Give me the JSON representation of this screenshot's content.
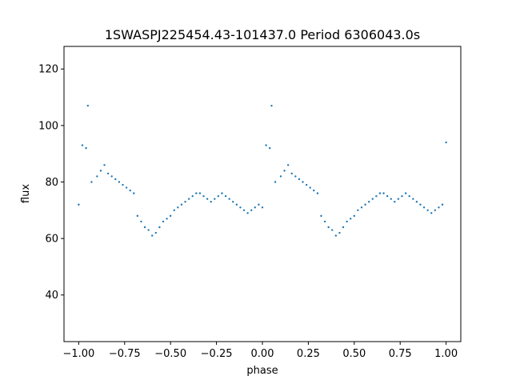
{
  "chart_data": {
    "type": "scatter",
    "title": "1SWASPJ225454.43-101437.0 Period 6306043.0s",
    "xlabel": "phase",
    "ylabel": "flux",
    "xlim": [
      -1.08,
      1.08
    ],
    "ylim": [
      23.5,
      128
    ],
    "xticks": [
      -1.0,
      -0.75,
      -0.5,
      -0.25,
      0.0,
      0.25,
      0.5,
      0.75,
      1.0
    ],
    "xtick_labels": [
      "−1.00",
      "−0.75",
      "−0.50",
      "−0.25",
      "0.00",
      "0.25",
      "0.50",
      "0.75",
      "1.00"
    ],
    "yticks": [
      40,
      60,
      80,
      100,
      120
    ],
    "ytick_labels": [
      "40",
      "60",
      "80",
      "100",
      "120"
    ],
    "grid": false,
    "marker_color": "#1f77b4",
    "series": [
      {
        "x": [
          -1.0,
          -0.98,
          -0.96,
          -0.95,
          -0.93,
          -0.9,
          -0.88,
          -0.86,
          -0.84,
          -0.82,
          -0.8,
          -0.78,
          -0.76,
          -0.74,
          -0.72,
          -0.7,
          -0.68,
          -0.66,
          -0.64,
          -0.62,
          -0.6,
          -0.58,
          -0.56,
          -0.54,
          -0.52,
          -0.5,
          -0.48,
          -0.46,
          -0.44,
          -0.42,
          -0.4,
          -0.38,
          -0.36,
          -0.34,
          -0.32,
          -0.3,
          -0.28,
          -0.26,
          -0.24,
          -0.22,
          -0.2,
          -0.18,
          -0.16,
          -0.14,
          -0.12,
          -0.1,
          -0.08,
          -0.06,
          -0.04,
          -0.02,
          0.0,
          0.02,
          0.04,
          0.05,
          0.07,
          0.1,
          0.12,
          0.14,
          0.16,
          0.18,
          0.2,
          0.22,
          0.24,
          0.26,
          0.28,
          0.3,
          0.32,
          0.34,
          0.36,
          0.38,
          0.4,
          0.42,
          0.44,
          0.46,
          0.48,
          0.5,
          0.52,
          0.54,
          0.56,
          0.58,
          0.6,
          0.62,
          0.64,
          0.66,
          0.68,
          0.7,
          0.72,
          0.74,
          0.76,
          0.78,
          0.8,
          0.82,
          0.84,
          0.86,
          0.88,
          0.9,
          0.92,
          0.94,
          0.96,
          0.98,
          1.0
        ],
        "y": [
          72,
          93,
          92,
          107,
          80,
          82,
          84,
          86,
          83,
          82,
          81,
          80,
          79,
          78,
          77,
          76,
          68,
          66,
          64,
          63,
          61,
          62,
          64,
          66,
          67,
          68,
          70,
          71,
          72,
          73,
          74,
          75,
          76,
          76,
          75,
          74,
          73,
          74,
          75,
          76,
          75,
          74,
          73,
          72,
          71,
          70,
          69,
          70,
          71,
          72,
          71,
          93,
          92,
          107,
          80,
          82,
          84,
          86,
          83,
          82,
          81,
          80,
          79,
          78,
          77,
          76,
          68,
          66,
          64,
          63,
          61,
          62,
          64,
          66,
          67,
          68,
          70,
          71,
          72,
          73,
          74,
          75,
          76,
          76,
          75,
          74,
          73,
          74,
          75,
          76,
          75,
          74,
          73,
          72,
          71,
          70,
          69,
          70,
          71,
          72,
          94
        ]
      }
    ]
  }
}
